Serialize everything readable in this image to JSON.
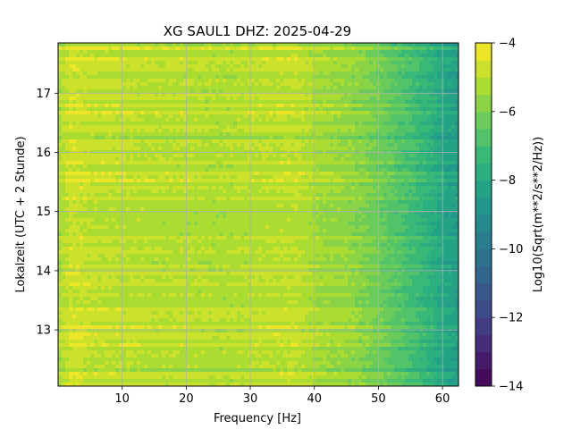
{
  "chart_data": {
    "type": "heatmap",
    "title": "XG SAUL1  DHZ: 2025-04-29",
    "xlabel": "Frequency [Hz]",
    "ylabel": "Lokalzeit (UTC + 2 Stunde)",
    "xlim": [
      0,
      62.5
    ],
    "ylim": [
      17.85,
      12.05
    ],
    "x_ticks": [
      "10",
      "20",
      "30",
      "40",
      "50",
      "60"
    ],
    "y_ticks": [
      "13",
      "14",
      "15",
      "16",
      "17"
    ],
    "grid": true,
    "colorbar": {
      "label": "Log10(Sqrt(m**2/s**2/Hz))",
      "range": [
        -14,
        -4
      ],
      "ticks": [
        "−14",
        "−12",
        "−10",
        "−8",
        "−6",
        "−4"
      ],
      "colormap": "viridis",
      "levels": 20
    },
    "spectral_profile": {
      "frequency_hz": [
        0,
        2,
        5,
        10,
        15,
        20,
        25,
        30,
        34,
        37,
        40,
        43,
        45,
        48,
        50,
        52,
        55,
        58,
        60,
        62.5
      ],
      "log10_amplitude": [
        -5.3,
        -4.7,
        -4.9,
        -5.0,
        -5.1,
        -5.1,
        -5.2,
        -5.1,
        -5.0,
        -4.95,
        -5.3,
        -5.5,
        -5.6,
        -5.9,
        -6.2,
        -6.5,
        -7.0,
        -7.6,
        -8.1,
        -8.4
      ]
    }
  }
}
